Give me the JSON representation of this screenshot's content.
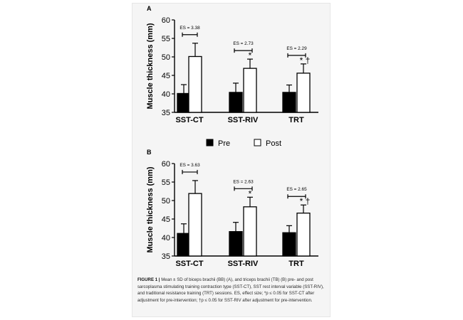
{
  "chart_data": [
    {
      "panel": "A",
      "type": "bar",
      "ylabel": "Muscle thickness (mm)",
      "ylim": [
        35,
        60
      ],
      "yticks": [
        35,
        40,
        45,
        50,
        55,
        60
      ],
      "categories": [
        "SST-CT",
        "SST-RIV",
        "TRT"
      ],
      "series": [
        {
          "name": "Pre",
          "color": "#000000",
          "values": [
            40.1,
            40.4,
            40.4
          ],
          "sd": [
            2.4,
            2.5,
            2.0
          ]
        },
        {
          "name": "Post",
          "color": "#ffffff",
          "values": [
            50.1,
            46.9,
            45.6
          ],
          "sd": [
            3.6,
            2.5,
            2.5
          ]
        }
      ],
      "effect_sizes": [
        "ES = 3.38",
        "ES = 2.73",
        "ES = 2.29"
      ],
      "significance": [
        "",
        "*",
        "* †"
      ]
    },
    {
      "panel": "B",
      "type": "bar",
      "ylabel": "Muscle thickness (mm)",
      "ylim": [
        35,
        60
      ],
      "yticks": [
        35,
        40,
        45,
        50,
        55,
        60
      ],
      "categories": [
        "SST-CT",
        "SST-RIV",
        "TRT"
      ],
      "series": [
        {
          "name": "Pre",
          "color": "#000000",
          "values": [
            41.1,
            41.6,
            41.3
          ],
          "sd": [
            2.6,
            2.5,
            1.9
          ]
        },
        {
          "name": "Post",
          "color": "#ffffff",
          "values": [
            51.9,
            48.3,
            46.6
          ],
          "sd": [
            3.5,
            2.6,
            2.2
          ]
        }
      ],
      "effect_sizes": [
        "ES = 3.63",
        "ES = 2.63",
        "ES = 2.65"
      ],
      "significance": [
        "",
        "*",
        "* †"
      ]
    }
  ],
  "legend": {
    "pre": "Pre",
    "post": "Post"
  },
  "caption": {
    "label": "FIGURE 1 |",
    "text": "Mean ± SD of biceps brachii (BB) (A), and triceps brachii (TB) (B) pre- and post sarcoplasma stimulating training contraction type (SST-CT), SST rest interval variable (SST-RIV), and traditional resistance training (TRT) sessions. ES, effect size; *p ≤ 0.05 for SST-CT after adjustment for pre-intervention; †p ≤ 0.05 for SST-RIV after adjustment for pre-intervention."
  }
}
